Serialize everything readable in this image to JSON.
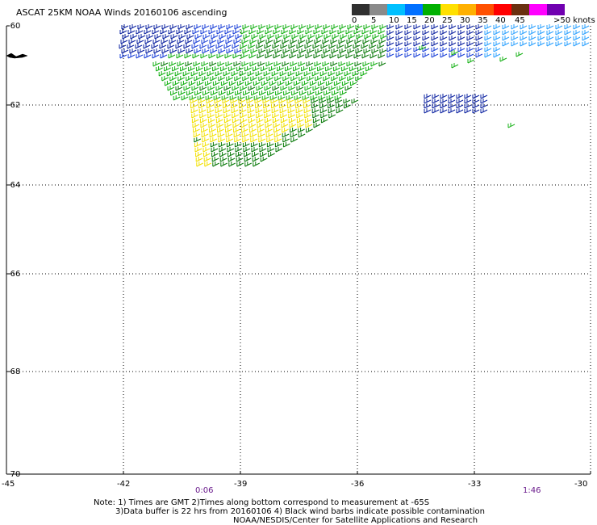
{
  "title": "ASCAT 25KM NOAA Winds 20160106 ascending",
  "legend": {
    "labels": [
      "0",
      "5",
      "10",
      "15",
      "20",
      "25",
      "30",
      "35",
      "40",
      "45",
      ">50 knots"
    ],
    "colors": [
      "#303030",
      "#8a8a8a",
      "#00c0ff",
      "#0070ff",
      "#00b000",
      "#ffe000",
      "#ffb000",
      "#ff5000",
      "#ff0000",
      "#6a3010",
      "#ff00ff",
      "#7000b0"
    ]
  },
  "axes": {
    "lat_labels": [
      "-60",
      "-62",
      "-64",
      "-66",
      "-68",
      "-70"
    ],
    "lon_labels": [
      "-45",
      "-42",
      "-39",
      "-36",
      "-33",
      "-30"
    ]
  },
  "times": {
    "start": "0:06",
    "end": "1:46"
  },
  "notes": {
    "line1": "Note: 1) Times are GMT 2)Times along bottom correspond to measurement at -65S",
    "line2": "3)Data buffer is 22 hrs from 20160106 4) Black wind barbs indicate possible contamination",
    "line3": "NOAA/NESDIS/Center for Satellite Applications and Research"
  }
}
